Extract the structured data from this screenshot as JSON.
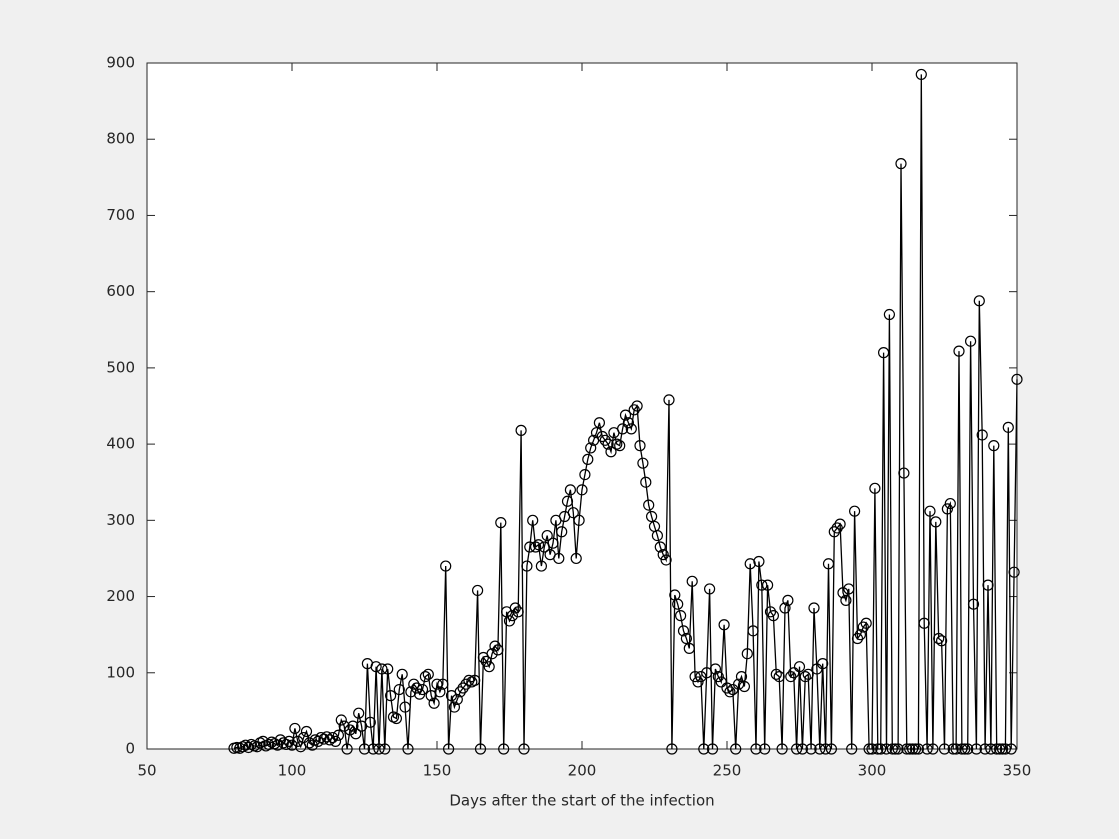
{
  "chart_data": {
    "type": "line",
    "xlabel": "Days after the start of the infection",
    "x": [
      80,
      81,
      82,
      83,
      84,
      85,
      86,
      87,
      88,
      89,
      90,
      91,
      92,
      93,
      94,
      95,
      96,
      97,
      98,
      99,
      100,
      101,
      102,
      103,
      104,
      105,
      106,
      107,
      108,
      109,
      110,
      111,
      112,
      113,
      114,
      115,
      116,
      117,
      118,
      119,
      120,
      121,
      122,
      123,
      124,
      125,
      126,
      127,
      128,
      129,
      130,
      131,
      132,
      133,
      134,
      135,
      136,
      137,
      138,
      139,
      140,
      141,
      142,
      143,
      144,
      145,
      146,
      147,
      148,
      149,
      150,
      151,
      152,
      153,
      154,
      155,
      156,
      157,
      158,
      159,
      160,
      161,
      162,
      163,
      164,
      165,
      166,
      167,
      168,
      169,
      170,
      171,
      172,
      173,
      174,
      175,
      176,
      177,
      178,
      179,
      180,
      181,
      182,
      183,
      184,
      185,
      186,
      187,
      188,
      189,
      190,
      191,
      192,
      193,
      194,
      195,
      196,
      197,
      198,
      199,
      200,
      201,
      202,
      203,
      204,
      205,
      206,
      207,
      208,
      209,
      210,
      211,
      212,
      213,
      214,
      215,
      216,
      217,
      218,
      219,
      220,
      221,
      222,
      223,
      224,
      225,
      226,
      227,
      228,
      229,
      230,
      231,
      232,
      233,
      234,
      235,
      236,
      237,
      238,
      239,
      240,
      241,
      242,
      243,
      244,
      245,
      246,
      247,
      248,
      249,
      250,
      251,
      252,
      253,
      254,
      255,
      256,
      257,
      258,
      259,
      260,
      261,
      262,
      263,
      264,
      265,
      266,
      267,
      268,
      269,
      270,
      271,
      272,
      273,
      274,
      275,
      276,
      277,
      278,
      279,
      280,
      281,
      282,
      283,
      284,
      285,
      286,
      287,
      288,
      289,
      290,
      291,
      292,
      293,
      294,
      295,
      296,
      297,
      298,
      299,
      300,
      301,
      302,
      303,
      304,
      305,
      306,
      307,
      308,
      309,
      310,
      311,
      312,
      313,
      314,
      315,
      316,
      317,
      318,
      319,
      320,
      321,
      322,
      323,
      324,
      325,
      326,
      327,
      328,
      329,
      330,
      331,
      332,
      333,
      334,
      335,
      336,
      337,
      338,
      339,
      340,
      341,
      342,
      343,
      344,
      345,
      346,
      347,
      348,
      349,
      350
    ],
    "series": [
      {
        "color": "#000000",
        "marker": "circle",
        "values": [
          1,
          2,
          1,
          3,
          5,
          2,
          6,
          4,
          3,
          8,
          10,
          4,
          6,
          9,
          7,
          5,
          12,
          8,
          6,
          10,
          5,
          27,
          10,
          3,
          15,
          23,
          8,
          5,
          12,
          10,
          15,
          13,
          16,
          12,
          15,
          10,
          18,
          38,
          30,
          0,
          25,
          30,
          20,
          47,
          30,
          0,
          112,
          35,
          0,
          108,
          0,
          105,
          0,
          105,
          70,
          42,
          40,
          78,
          98,
          55,
          0,
          75,
          85,
          80,
          72,
          78,
          95,
          98,
          70,
          60,
          85,
          75,
          85,
          240,
          0,
          70,
          55,
          65,
          75,
          80,
          85,
          90,
          88,
          90,
          208,
          0,
          120,
          115,
          108,
          125,
          135,
          130,
          297,
          0,
          180,
          168,
          175,
          185,
          180,
          418,
          0,
          240,
          265,
          300,
          265,
          268,
          240,
          265,
          280,
          255,
          270,
          300,
          250,
          285,
          305,
          325,
          340,
          310,
          250,
          300,
          340,
          360,
          380,
          395,
          405,
          415,
          428,
          410,
          405,
          400,
          390,
          415,
          400,
          398,
          420,
          438,
          428,
          420,
          445,
          450,
          398,
          375,
          350,
          320,
          305,
          292,
          280,
          265,
          255,
          248,
          458,
          0,
          202,
          190,
          175,
          155,
          145,
          132,
          220,
          95,
          88,
          95,
          0,
          100,
          210,
          0,
          105,
          95,
          88,
          163,
          80,
          75,
          78,
          0,
          85,
          95,
          82,
          125,
          243,
          155,
          0,
          246,
          215,
          0,
          215,
          180,
          175,
          98,
          95,
          0,
          185,
          195,
          95,
          100,
          0,
          108,
          0,
          95,
          98,
          0,
          185,
          105,
          0,
          112,
          0,
          243,
          0,
          285,
          290,
          295,
          205,
          195,
          210,
          0,
          312,
          145,
          150,
          160,
          165,
          0,
          0,
          342,
          0,
          0,
          520,
          0,
          570,
          0,
          0,
          0,
          768,
          362,
          0,
          0,
          0,
          0,
          0,
          885,
          165,
          0,
          312,
          0,
          298,
          145,
          142,
          0,
          315,
          322,
          0,
          0,
          522,
          0,
          0,
          0,
          535,
          190,
          0,
          588,
          412,
          0,
          215,
          0,
          398,
          0,
          0,
          0,
          0,
          422,
          0,
          232,
          485
        ]
      }
    ],
    "xlim": [
      50,
      350
    ],
    "xticks": [
      50,
      100,
      150,
      200,
      250,
      300,
      350
    ],
    "ylim": [
      0,
      900
    ],
    "yticks": [
      0,
      100,
      200,
      300,
      400,
      500,
      600,
      700,
      800,
      900
    ]
  }
}
